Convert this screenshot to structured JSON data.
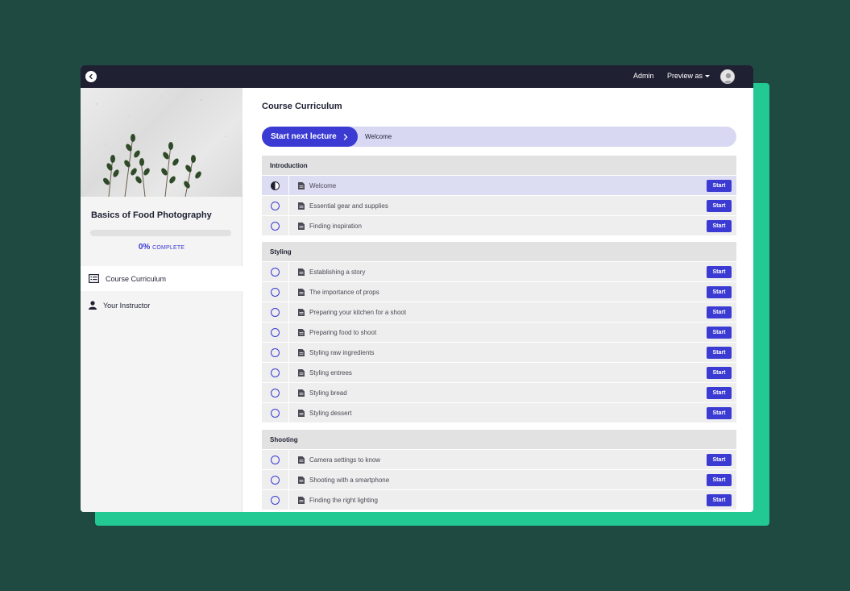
{
  "topbar": {
    "admin": "Admin",
    "preview_as": "Preview as"
  },
  "sidebar": {
    "course_title": "Basics of Food Photography",
    "progress_percent": "0%",
    "progress_word": "COMPLETE",
    "progress_value": 0,
    "nav": [
      {
        "label": "Course Curriculum",
        "icon": "list-icon",
        "active": true
      },
      {
        "label": "Your Instructor",
        "icon": "user-icon",
        "active": false
      }
    ]
  },
  "main": {
    "title": "Course Curriculum",
    "start_next_label": "Start next lecture",
    "next_lecture": "Welcome"
  },
  "start_label": "Start",
  "sections": [
    {
      "title": "Introduction",
      "lectures": [
        {
          "name": "Welcome",
          "status": "in-progress"
        },
        {
          "name": "Essential gear and supplies",
          "status": "not-started"
        },
        {
          "name": "Finding inspiration",
          "status": "not-started"
        }
      ]
    },
    {
      "title": "Styling",
      "lectures": [
        {
          "name": "Establishing a story",
          "status": "not-started"
        },
        {
          "name": "The importance of props",
          "status": "not-started"
        },
        {
          "name": "Preparing your kitchen for a shoot",
          "status": "not-started"
        },
        {
          "name": "Preparing food to shoot",
          "status": "not-started"
        },
        {
          "name": "Styling raw ingredients",
          "status": "not-started"
        },
        {
          "name": "Styling entrees",
          "status": "not-started"
        },
        {
          "name": "Styling bread",
          "status": "not-started"
        },
        {
          "name": "Styling dessert",
          "status": "not-started"
        }
      ]
    },
    {
      "title": "Shooting",
      "lectures": [
        {
          "name": "Camera settings to know",
          "status": "not-started"
        },
        {
          "name": "Shooting with a smartphone",
          "status": "not-started"
        },
        {
          "name": "Finding the right lighting",
          "status": "not-started"
        }
      ]
    }
  ],
  "colors": {
    "accent": "#3b3bd4",
    "topbar": "#1f2133",
    "background": "#1e4a42",
    "card_accent": "#22c993"
  }
}
